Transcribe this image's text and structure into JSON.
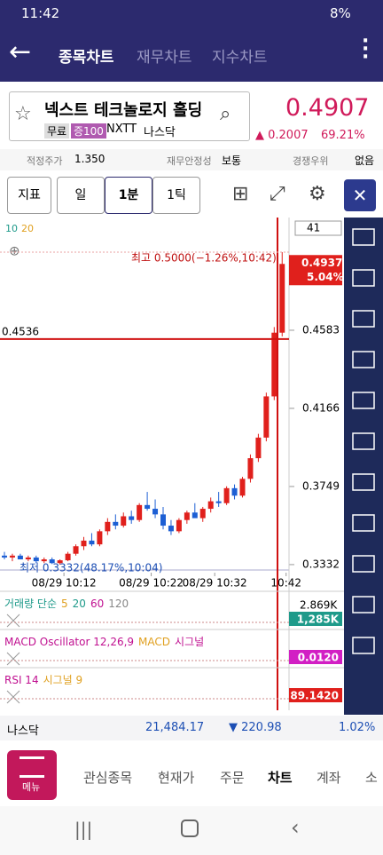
{
  "status": {
    "time": "11:42",
    "battery": "8%"
  },
  "header": {
    "tabs": [
      "종목차트",
      "재무차트",
      "지수차트"
    ]
  },
  "stock": {
    "name": "넥스트 테크놀로지 홀딩",
    "tags": [
      "무료",
      "증100"
    ],
    "code": "NXTT",
    "market": "나스닥",
    "price": "0.4907",
    "change": "▲ 0.2007",
    "change_pct": "69.21%"
  },
  "info": [
    {
      "label": "적정주가",
      "value": "1.350"
    },
    {
      "label": "재무안정성",
      "value": "보통"
    },
    {
      "label": "경쟁우위",
      "value": "없음"
    }
  ],
  "toolbar": [
    "지표",
    "일",
    "1분",
    "1틱"
  ],
  "chart_data": {
    "type": "candlestick",
    "ma_legend": [
      "10",
      "20"
    ],
    "counter": "41",
    "open": [
      0.338,
      0.337,
      0.338,
      0.336,
      0.337,
      0.335,
      0.336,
      0.334,
      0.3355,
      0.339,
      0.343,
      0.346,
      0.344,
      0.351,
      0.356,
      0.354,
      0.359,
      0.357,
      0.365,
      0.363,
      0.36,
      0.354,
      0.351,
      0.357,
      0.361,
      0.358,
      0.363,
      0.367,
      0.366,
      0.374,
      0.37,
      0.379,
      0.39,
      0.401,
      0.423,
      0.457
    ],
    "high": [
      0.34,
      0.339,
      0.339,
      0.338,
      0.338,
      0.337,
      0.337,
      0.336,
      0.34,
      0.344,
      0.348,
      0.35,
      0.352,
      0.358,
      0.36,
      0.361,
      0.362,
      0.366,
      0.372,
      0.368,
      0.364,
      0.357,
      0.358,
      0.362,
      0.366,
      0.364,
      0.369,
      0.372,
      0.375,
      0.376,
      0.38,
      0.392,
      0.403,
      0.425,
      0.46,
      0.5
    ],
    "low": [
      0.336,
      0.335,
      0.336,
      0.335,
      0.334,
      0.334,
      0.3335,
      0.3332,
      0.335,
      0.338,
      0.341,
      0.343,
      0.343,
      0.349,
      0.352,
      0.353,
      0.355,
      0.356,
      0.362,
      0.358,
      0.352,
      0.349,
      0.35,
      0.355,
      0.359,
      0.356,
      0.361,
      0.364,
      0.365,
      0.368,
      0.369,
      0.377,
      0.388,
      0.399,
      0.421,
      0.455
    ],
    "close": [
      0.337,
      0.338,
      0.336,
      0.337,
      0.335,
      0.336,
      0.334,
      0.3355,
      0.339,
      0.343,
      0.346,
      0.344,
      0.351,
      0.356,
      0.354,
      0.359,
      0.357,
      0.365,
      0.363,
      0.36,
      0.354,
      0.351,
      0.357,
      0.361,
      0.358,
      0.363,
      0.367,
      0.366,
      0.374,
      0.37,
      0.379,
      0.39,
      0.401,
      0.423,
      0.457,
      0.4937
    ],
    "up_color": "#e0201c",
    "down_color": "#1d5fd4",
    "ylim": [
      0.3289,
      0.5161
    ],
    "yticks": [
      0.3332,
      0.3749,
      0.4166,
      0.4583
    ],
    "xticks": [
      {
        "value": 7.5,
        "label": "08/29 10:12"
      },
      {
        "value": 18.5,
        "label": "08/29 10:22"
      },
      {
        "value": 26.5,
        "label": "08/29 10:32"
      },
      {
        "value": 35.5,
        "label": "10:42"
      }
    ],
    "high_note": "최고 0.5000(−1.26%,10:42)",
    "low_note": "최저 0.3332(48.17%,10:04)",
    "hline": 0.4536,
    "last_price": 0.4937,
    "last_pct": "5.04%"
  },
  "panels": [
    {
      "title": "거래량 단순",
      "params": [
        "5",
        "20",
        "60",
        "120"
      ],
      "scale": "2.869K",
      "tag": "1,285K",
      "tag_color": "#1e9a8a"
    },
    {
      "title": "MACD Oscillator 12,26,9",
      "params": [
        "MACD",
        "시그널"
      ],
      "tag": "0.0120",
      "tag_color": "#d21fc4"
    },
    {
      "title": "RSI 14",
      "params": [
        "시그널 9"
      ],
      "tag": "89.1420",
      "tag_color": "#e0201c"
    }
  ],
  "ticker": {
    "name": "나스닥",
    "value": "21,484.17",
    "change": "▼ 220.98",
    "pct": "1.02%"
  },
  "nav": {
    "menu": "메뉴",
    "tabs": [
      "관심종목",
      "현재가",
      "주문",
      "차트",
      "계좌",
      "소"
    ]
  }
}
